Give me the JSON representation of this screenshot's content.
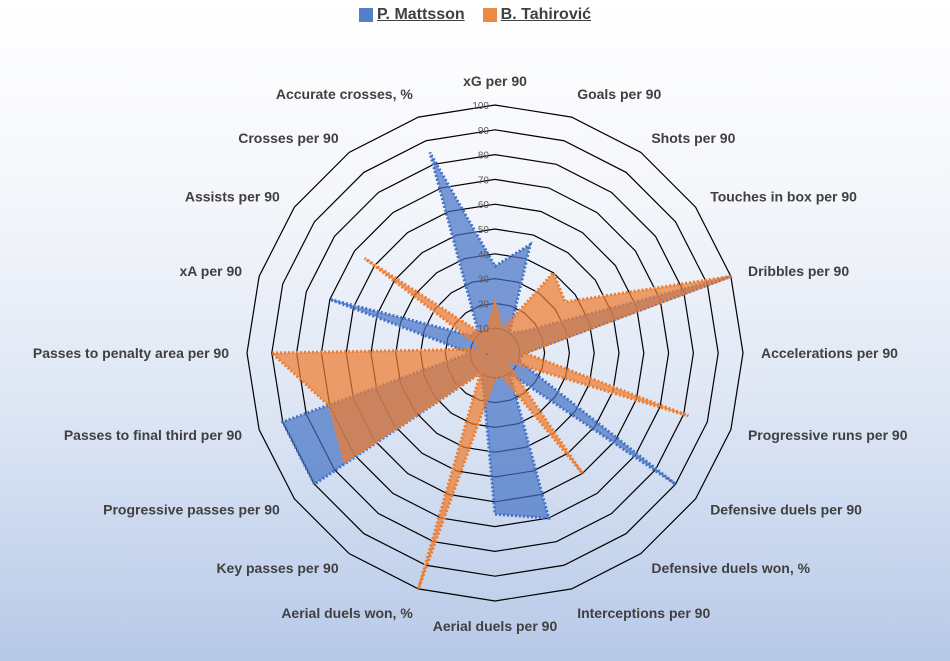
{
  "chart_data": {
    "type": "radar",
    "axes": [
      "xG per 90",
      "Goals per 90",
      "Shots per 90",
      "Touches in box per 90",
      "Dribbles per 90",
      "Accelerations per 90",
      "Progressive runs per 90",
      "Defensive duels per 90",
      "Defensive duels won, %",
      "Interceptions per 90",
      "Aerial duels per 90",
      "Aerial duels won, %",
      "Key passes per 90",
      "Progressive passes per 90",
      "Passes to final third per 90",
      "Passes to penalty area per 90",
      "xA per 90",
      "Assists per 90",
      "Crosses per 90",
      "Accurate crosses, %"
    ],
    "rlim": [
      0,
      100
    ],
    "ticks": [
      "-",
      "10",
      "20",
      "30",
      "40",
      "50",
      "60",
      "70",
      "80",
      "90",
      "100"
    ],
    "series": [
      {
        "name": "P. Mattsson",
        "color": "#4472c4",
        "values": [
          35,
          46,
          10,
          15,
          100,
          12,
          10,
          90,
          10,
          70,
          65,
          15,
          10,
          90,
          90,
          10,
          70,
          12,
          12,
          85
        ]
      },
      {
        "name": "B. Tahirović",
        "color": "#ed7d31",
        "values": [
          20,
          10,
          40,
          35,
          100,
          12,
          82,
          5,
          60,
          10,
          10,
          100,
          10,
          75,
          70,
          90,
          5,
          65,
          10,
          10
        ]
      }
    ]
  }
}
